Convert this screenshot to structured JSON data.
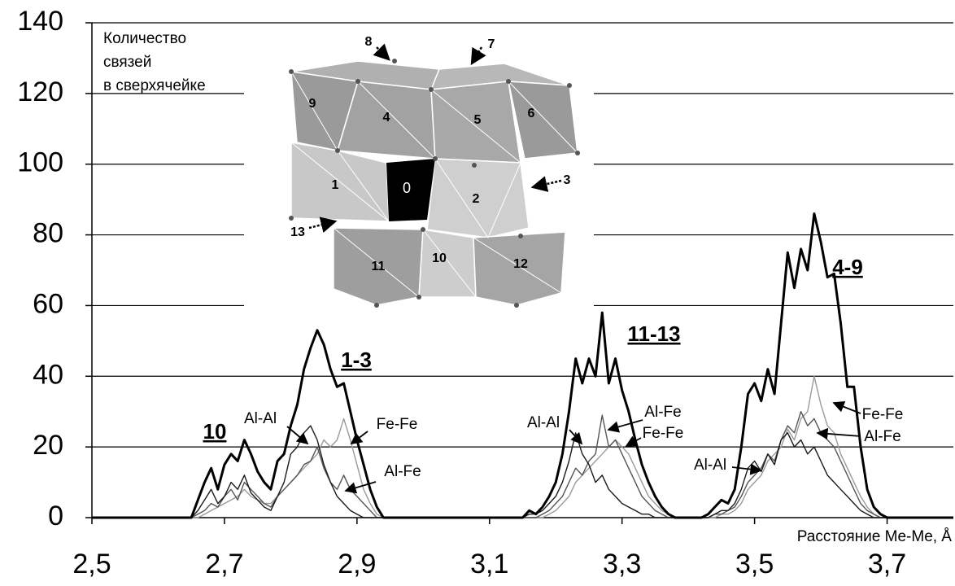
{
  "chart_data": {
    "type": "line",
    "y_label": [
      "Количество",
      "связей",
      "в сверхячейке"
    ],
    "x_label": "Расстояние Me-Me, Å",
    "xlim": [
      2.5,
      3.8
    ],
    "ylim": [
      0,
      140
    ],
    "xticks": [
      {
        "value": 2.5,
        "label": "2,5"
      },
      {
        "value": 2.7,
        "label": "2,7"
      },
      {
        "value": 2.9,
        "label": "2,9"
      },
      {
        "value": 3.1,
        "label": "3,1"
      },
      {
        "value": 3.3,
        "label": "3,3"
      },
      {
        "value": 3.5,
        "label": "3,5"
      },
      {
        "value": 3.7,
        "label": "3,7"
      }
    ],
    "yticks": [
      0,
      20,
      40,
      60,
      80,
      100,
      120,
      140
    ],
    "grid": true,
    "annotations": [
      "10",
      "1-3",
      "11-13",
      "4-9"
    ],
    "x": [
      2.5,
      2.65,
      2.66,
      2.67,
      2.68,
      2.69,
      2.7,
      2.71,
      2.72,
      2.73,
      2.74,
      2.75,
      2.76,
      2.77,
      2.78,
      2.79,
      2.8,
      2.81,
      2.82,
      2.83,
      2.84,
      2.85,
      2.86,
      2.87,
      2.88,
      2.89,
      2.9,
      2.91,
      2.92,
      2.93,
      2.94,
      3.15,
      3.16,
      3.17,
      3.18,
      3.19,
      3.2,
      3.21,
      3.22,
      3.23,
      3.24,
      3.25,
      3.26,
      3.27,
      3.28,
      3.29,
      3.3,
      3.31,
      3.32,
      3.33,
      3.34,
      3.35,
      3.36,
      3.37,
      3.38,
      3.42,
      3.43,
      3.44,
      3.45,
      3.46,
      3.47,
      3.48,
      3.49,
      3.5,
      3.51,
      3.52,
      3.53,
      3.54,
      3.55,
      3.56,
      3.57,
      3.58,
      3.59,
      3.6,
      3.61,
      3.62,
      3.63,
      3.64,
      3.65,
      3.66,
      3.67,
      3.68,
      3.69,
      3.7,
      3.8
    ],
    "series": [
      {
        "color": "#000000",
        "values": [
          0,
          0,
          5,
          10,
          14,
          8,
          15,
          18,
          16,
          22,
          18,
          13,
          10,
          8,
          16,
          18,
          26,
          32,
          42,
          48,
          53,
          49,
          42,
          37,
          38,
          30,
          22,
          15,
          8,
          3,
          0,
          0,
          2,
          1,
          3,
          6,
          10,
          18,
          30,
          45,
          38,
          45,
          40,
          58,
          38,
          45,
          36,
          30,
          22,
          15,
          10,
          6,
          3,
          1,
          0,
          0,
          1,
          3,
          5,
          4,
          8,
          20,
          35,
          38,
          33,
          42,
          35,
          55,
          75,
          65,
          76,
          70,
          86,
          78,
          68,
          69,
          55,
          37,
          37,
          20,
          8,
          3,
          1,
          0,
          0
        ]
      },
      {
        "name": "Al-Al",
        "color": "#1a1a1a",
        "values": [
          0,
          0,
          2,
          5,
          8,
          4,
          6,
          10,
          8,
          12,
          7,
          5,
          3,
          2,
          6,
          10,
          18,
          20,
          24,
          26,
          22,
          15,
          10,
          6,
          4,
          2,
          1,
          0,
          0,
          0,
          0,
          0,
          1,
          1,
          2,
          4,
          6,
          10,
          16,
          24,
          18,
          15,
          10,
          12,
          8,
          6,
          4,
          3,
          2,
          1,
          1,
          0,
          0,
          0,
          0,
          0,
          0,
          1,
          2,
          2,
          4,
          8,
          14,
          16,
          13,
          18,
          15,
          22,
          24,
          20,
          22,
          18,
          20,
          16,
          12,
          10,
          8,
          6,
          4,
          2,
          1,
          0,
          0,
          0,
          0
        ]
      },
      {
        "name": "Al-Fe",
        "color": "#555555",
        "values": [
          0,
          0,
          1,
          2,
          4,
          3,
          6,
          8,
          5,
          10,
          8,
          6,
          4,
          3,
          6,
          8,
          10,
          12,
          15,
          16,
          20,
          14,
          10,
          8,
          12,
          8,
          6,
          4,
          2,
          0,
          0,
          0,
          0,
          0,
          1,
          2,
          4,
          6,
          10,
          14,
          12,
          16,
          18,
          29,
          20,
          22,
          18,
          14,
          10,
          6,
          4,
          2,
          1,
          0,
          0,
          0,
          0,
          1,
          1,
          2,
          3,
          6,
          10,
          12,
          14,
          18,
          16,
          22,
          26,
          24,
          30,
          26,
          28,
          24,
          22,
          20,
          16,
          12,
          8,
          4,
          2,
          1,
          0,
          0,
          0
        ]
      },
      {
        "name": "Fe-Fe",
        "color": "#9a9a9a",
        "values": [
          0,
          0,
          0,
          1,
          2,
          3,
          4,
          5,
          6,
          8,
          6,
          5,
          4,
          4,
          6,
          8,
          10,
          12,
          14,
          16,
          18,
          22,
          20,
          22,
          28,
          22,
          15,
          8,
          4,
          1,
          0,
          0,
          0,
          0,
          0,
          1,
          2,
          4,
          6,
          10,
          12,
          14,
          16,
          18,
          20,
          22,
          20,
          18,
          14,
          10,
          6,
          4,
          2,
          1,
          0,
          0,
          0,
          0,
          1,
          1,
          2,
          4,
          8,
          10,
          12,
          16,
          18,
          20,
          25,
          22,
          28,
          30,
          40,
          32,
          26,
          24,
          18,
          14,
          10,
          6,
          3,
          1,
          0,
          0,
          0
        ]
      }
    ]
  },
  "inset_labels": [
    "0",
    "1",
    "2",
    "3",
    "4",
    "5",
    "6",
    "7",
    "8",
    "9",
    "10",
    "11",
    "12",
    "13"
  ]
}
